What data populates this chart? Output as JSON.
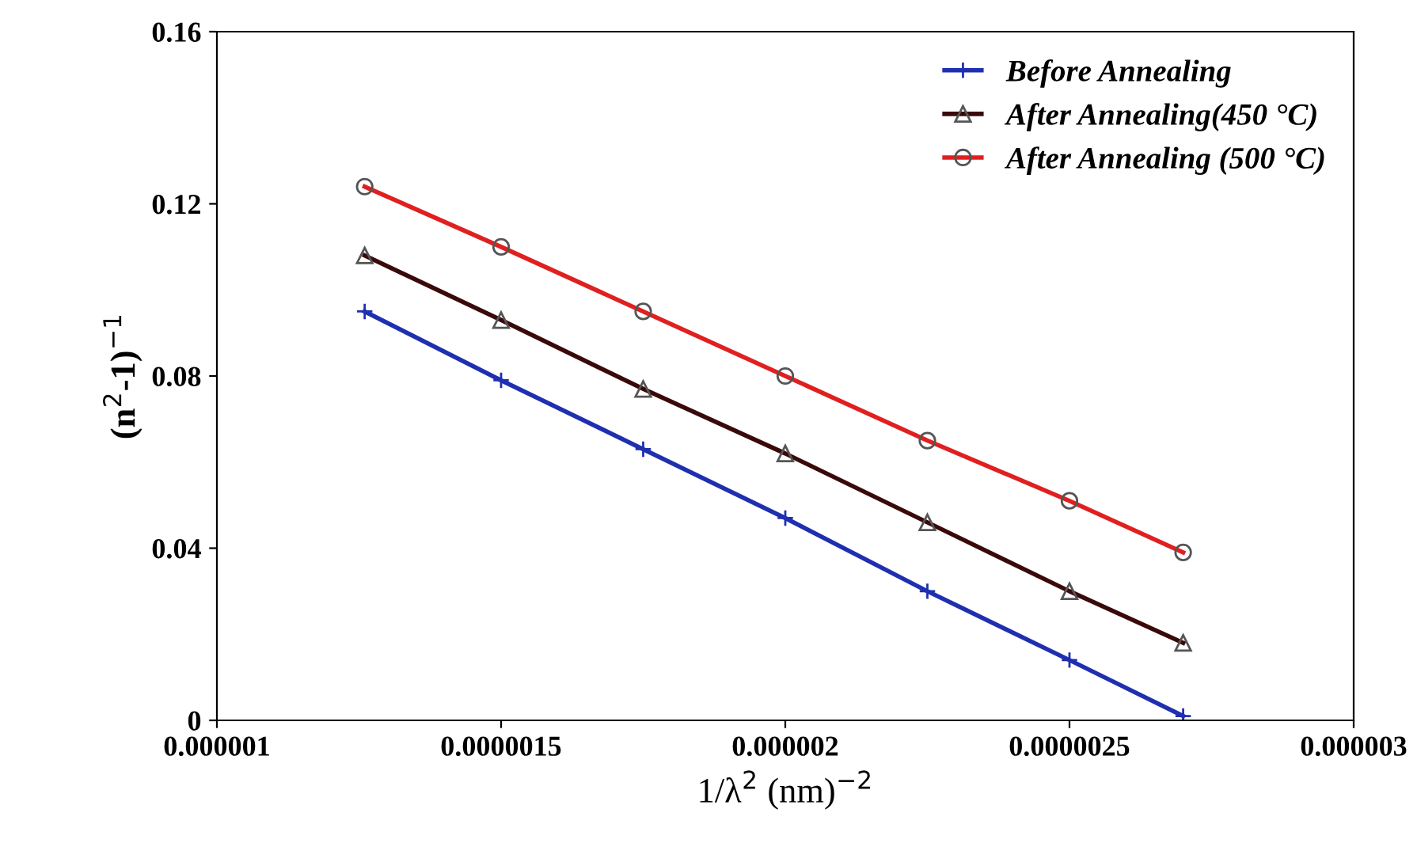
{
  "chart_data": {
    "type": "line",
    "xlabel": "1/λ$^{2}$ (nm)$^{−2}$",
    "ylabel": "(n$^{2}$-1)$^{−1}$",
    "xlim": [
      1e-06,
      3e-06
    ],
    "xticks": [
      {
        "value": 1e-06,
        "label": "0.000001"
      },
      {
        "value": 1.5e-06,
        "label": "0.0000015"
      },
      {
        "value": 2e-06,
        "label": "0.000002"
      },
      {
        "value": 2.5e-06,
        "label": "0.0000025"
      },
      {
        "value": 3e-06,
        "label": "0.000003"
      }
    ],
    "ylim": [
      0,
      0.16
    ],
    "yticks": [
      0,
      0.04,
      0.08,
      0.12,
      0.16
    ],
    "x": [
      1.26e-06,
      1.5e-06,
      1.75e-06,
      2e-06,
      2.25e-06,
      2.5e-06,
      2.7e-06
    ],
    "series": [
      {
        "name": "Before Annealing",
        "color": "#1f2fb0",
        "marker": "cross",
        "values": [
          0.095,
          0.079,
          0.063,
          0.047,
          0.03,
          0.014,
          0.001
        ]
      },
      {
        "name": "After Annealing(450 °C)",
        "color": "#3a0a0a",
        "marker": "triangle",
        "values": [
          0.108,
          0.093,
          0.077,
          0.062,
          0.046,
          0.03,
          0.018
        ]
      },
      {
        "name": "After Annealing (500 °C)",
        "color": "#e02020",
        "marker": "circle",
        "values": [
          0.124,
          0.11,
          0.095,
          0.08,
          0.065,
          0.051,
          0.039
        ]
      }
    ],
    "grid": false,
    "legend": "top right",
    "line_style": "solid"
  }
}
